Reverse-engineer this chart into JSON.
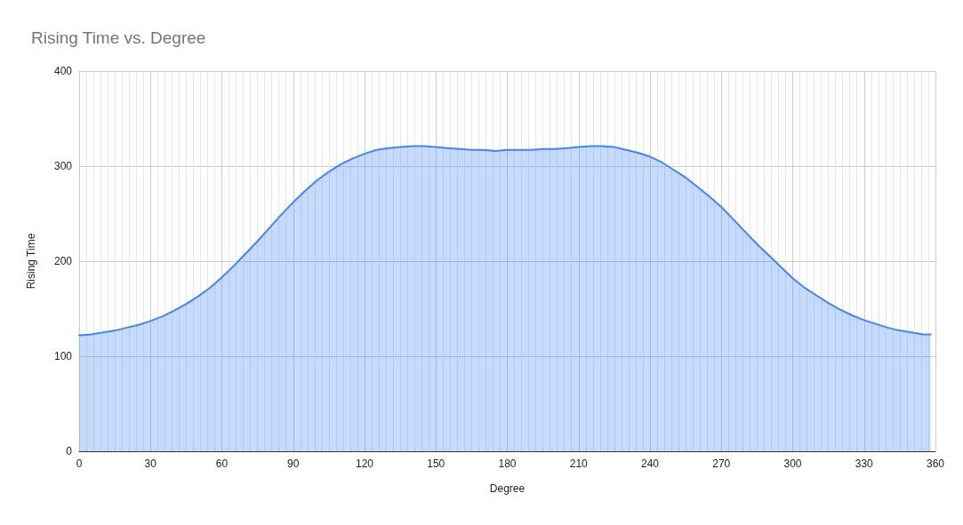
{
  "chart_data": {
    "type": "area",
    "title": "Rising Time vs. Degree",
    "xlabel": "Degree",
    "ylabel": "Rising Time",
    "x": [
      0,
      5,
      10,
      15,
      20,
      25,
      30,
      35,
      40,
      45,
      50,
      55,
      60,
      65,
      70,
      75,
      80,
      85,
      90,
      95,
      100,
      105,
      110,
      115,
      120,
      125,
      130,
      135,
      140,
      145,
      150,
      155,
      160,
      165,
      170,
      175,
      180,
      185,
      190,
      195,
      200,
      205,
      210,
      215,
      220,
      225,
      230,
      235,
      240,
      245,
      250,
      255,
      260,
      265,
      270,
      275,
      280,
      285,
      290,
      295,
      300,
      305,
      310,
      315,
      320,
      325,
      330,
      335,
      340,
      345,
      350,
      355,
      358
    ],
    "series": [
      {
        "color": "#4285f4",
        "values": [
          122,
          123,
          125,
          127,
          130,
          133,
          137,
          142,
          148,
          155,
          163,
          172,
          183,
          195,
          208,
          221,
          235,
          249,
          262,
          274,
          285,
          294,
          302,
          308,
          313,
          317,
          319,
          320,
          321,
          321,
          320,
          319,
          318,
          317,
          317,
          316,
          317,
          317,
          317,
          318,
          318,
          319,
          320,
          321,
          321,
          320,
          317,
          314,
          310,
          304,
          296,
          288,
          278,
          268,
          257,
          244,
          231,
          218,
          206,
          194,
          182,
          172,
          164,
          156,
          149,
          143,
          138,
          134,
          130,
          127,
          125,
          123,
          123
        ]
      }
    ],
    "xlim": [
      0,
      360
    ],
    "xticks": [
      0,
      30,
      60,
      90,
      120,
      150,
      180,
      210,
      240,
      270,
      300,
      330,
      360
    ],
    "ylim": [
      0,
      400
    ],
    "yticks": [
      0,
      100,
      200,
      300,
      400
    ],
    "grid": true,
    "marker": "none",
    "line_style": "solid"
  }
}
